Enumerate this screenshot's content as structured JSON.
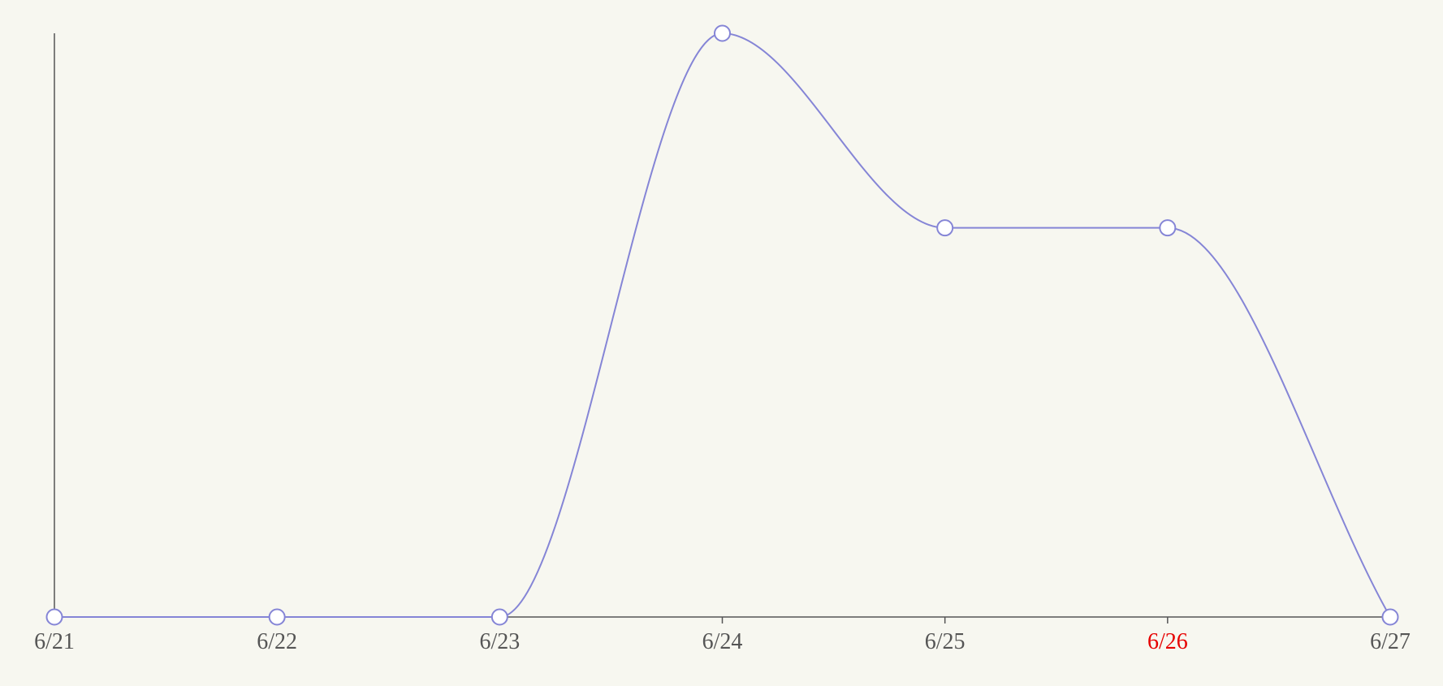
{
  "colors": {
    "background": "#f7f7f0",
    "axis": "#555555",
    "line": "#8585d6",
    "marker_fill": "#ffffff",
    "tick_label": "#555555",
    "highlight_label": "#e60000"
  },
  "chart_data": {
    "type": "line",
    "smooth": true,
    "categories": [
      "6/21",
      "6/22",
      "6/23",
      "6/24",
      "6/25",
      "6/26",
      "6/27"
    ],
    "series": [
      {
        "values": [
          0,
          0,
          0,
          3,
          2,
          2,
          0
        ]
      }
    ],
    "ylim": [
      0,
      3
    ],
    "highlighted_category": "6/26",
    "show_y_tick_labels": false,
    "grid": false,
    "markers": "hollow-circle"
  }
}
